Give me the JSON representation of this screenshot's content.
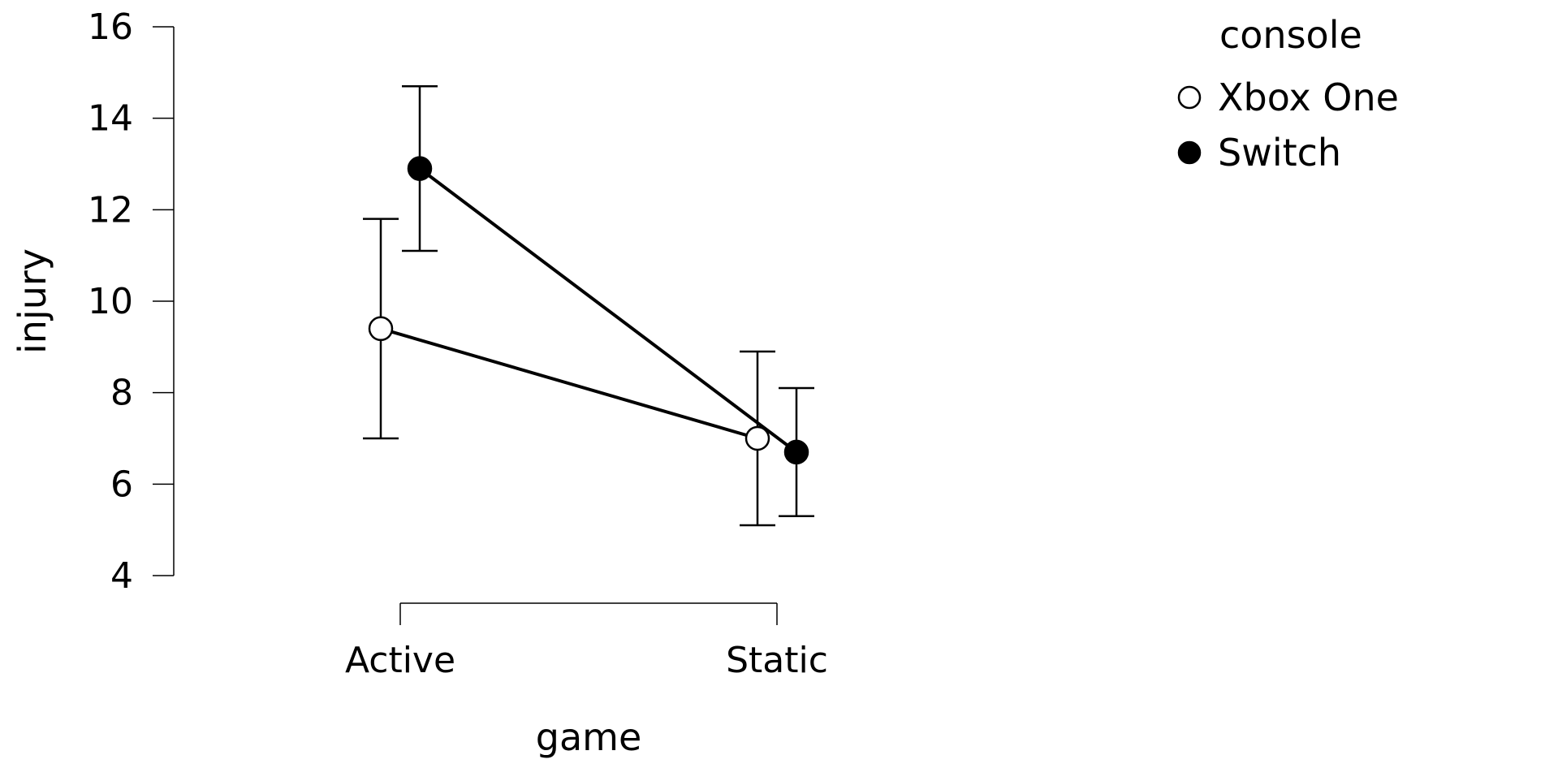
{
  "chart_data": {
    "type": "line",
    "xlabel": "game",
    "ylabel": "injury",
    "categories": [
      "Active",
      "Static"
    ],
    "ylim": [
      4,
      16
    ],
    "yticks": [
      "4",
      "6",
      "8",
      "10",
      "12",
      "14",
      "16"
    ],
    "legend": {
      "title": "console",
      "position": "top-right"
    },
    "series": [
      {
        "name": "Xbox One",
        "marker": "open-circle",
        "values": [
          9.4,
          7.0
        ],
        "error_low": [
          7.0,
          5.1
        ],
        "error_high": [
          11.8,
          8.9
        ]
      },
      {
        "name": "Switch",
        "marker": "filled-circle",
        "values": [
          12.9,
          6.7
        ],
        "error_low": [
          11.1,
          5.3
        ],
        "error_high": [
          14.7,
          8.1
        ]
      }
    ],
    "grid": false
  }
}
